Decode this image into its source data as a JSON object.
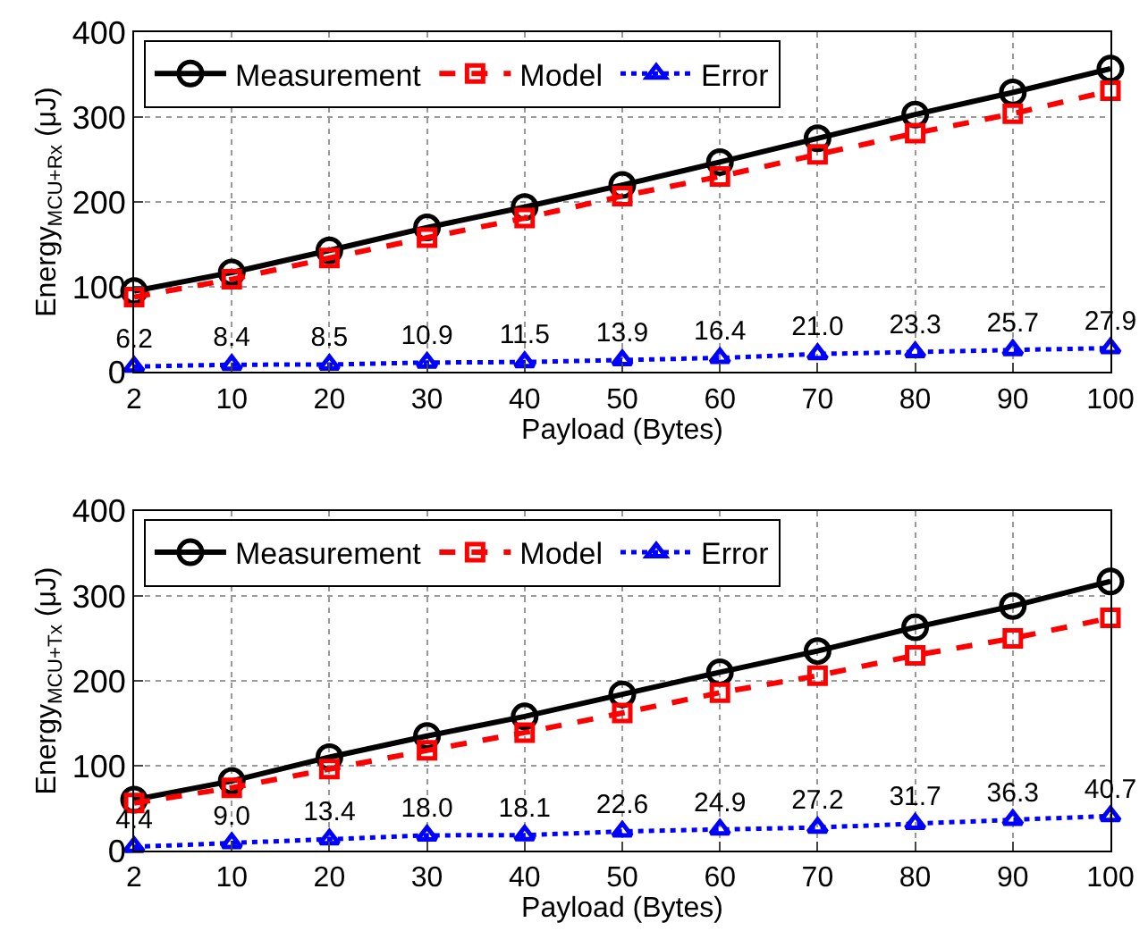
{
  "chart_data": [
    {
      "type": "line",
      "xlabel": "Payload (Bytes)",
      "ylabel": "Energy$_{MCU+Rx}$ (μJ)",
      "categories": [
        "2",
        "10",
        "20",
        "30",
        "40",
        "50",
        "60",
        "70",
        "80",
        "90",
        "100"
      ],
      "ylim": [
        0,
        400
      ],
      "yticks": [
        0,
        100,
        200,
        300,
        400
      ],
      "grid": true,
      "legend": "top left",
      "series": [
        {
          "name": "Measurement",
          "color": "#000000",
          "marker": "circle",
          "line_style": "solid",
          "values": [
            95,
            117,
            143,
            170,
            194,
            220,
            247,
            275,
            303,
            329,
            357
          ]
        },
        {
          "name": "Model",
          "color": "#ff0000",
          "marker": "square",
          "line_style": "dashed",
          "values": [
            88,
            109,
            134,
            158,
            181,
            207,
            230,
            256,
            281,
            304,
            331
          ]
        },
        {
          "name": "Error",
          "color": "#0000ff",
          "marker": "triangle",
          "line_style": "dotted",
          "values": [
            6.2,
            8.4,
            8.5,
            10.9,
            11.5,
            13.9,
            16.4,
            21.0,
            23.3,
            25.7,
            27.9
          ],
          "value_labels": [
            "6.2",
            "8.4",
            "8.5",
            "10.9",
            "11.5",
            "13.9",
            "16.4",
            "21.0",
            "23.3",
            "25.7",
            "27.9"
          ]
        }
      ]
    },
    {
      "type": "line",
      "xlabel": "Payload (Bytes)",
      "ylabel": "Energy$_{MCU+Tx}$ (μJ)",
      "categories": [
        "2",
        "10",
        "20",
        "30",
        "40",
        "50",
        "60",
        "70",
        "80",
        "90",
        "100"
      ],
      "ylim": [
        0,
        400
      ],
      "yticks": [
        0,
        100,
        200,
        300,
        400
      ],
      "grid": true,
      "legend": "top left",
      "series": [
        {
          "name": "Measurement",
          "color": "#000000",
          "marker": "circle",
          "line_style": "solid",
          "values": [
            60,
            82,
            110,
            135,
            158,
            184,
            210,
            235,
            263,
            288,
            317
          ]
        },
        {
          "name": "Model",
          "color": "#ff0000",
          "marker": "square",
          "line_style": "dashed",
          "values": [
            56,
            74,
            96,
            118,
            139,
            162,
            186,
            206,
            230,
            250,
            274
          ]
        },
        {
          "name": "Error",
          "color": "#0000ff",
          "marker": "triangle",
          "line_style": "dotted",
          "values": [
            4.4,
            9.0,
            13.4,
            18.0,
            18.1,
            22.6,
            24.9,
            27.2,
            31.7,
            36.3,
            40.7
          ],
          "value_labels": [
            "4.4",
            "9.0",
            "13.4",
            "18.0",
            "18.1",
            "22.6",
            "24.9",
            "27.2",
            "31.7",
            "36.3",
            "40.7"
          ]
        }
      ]
    }
  ]
}
